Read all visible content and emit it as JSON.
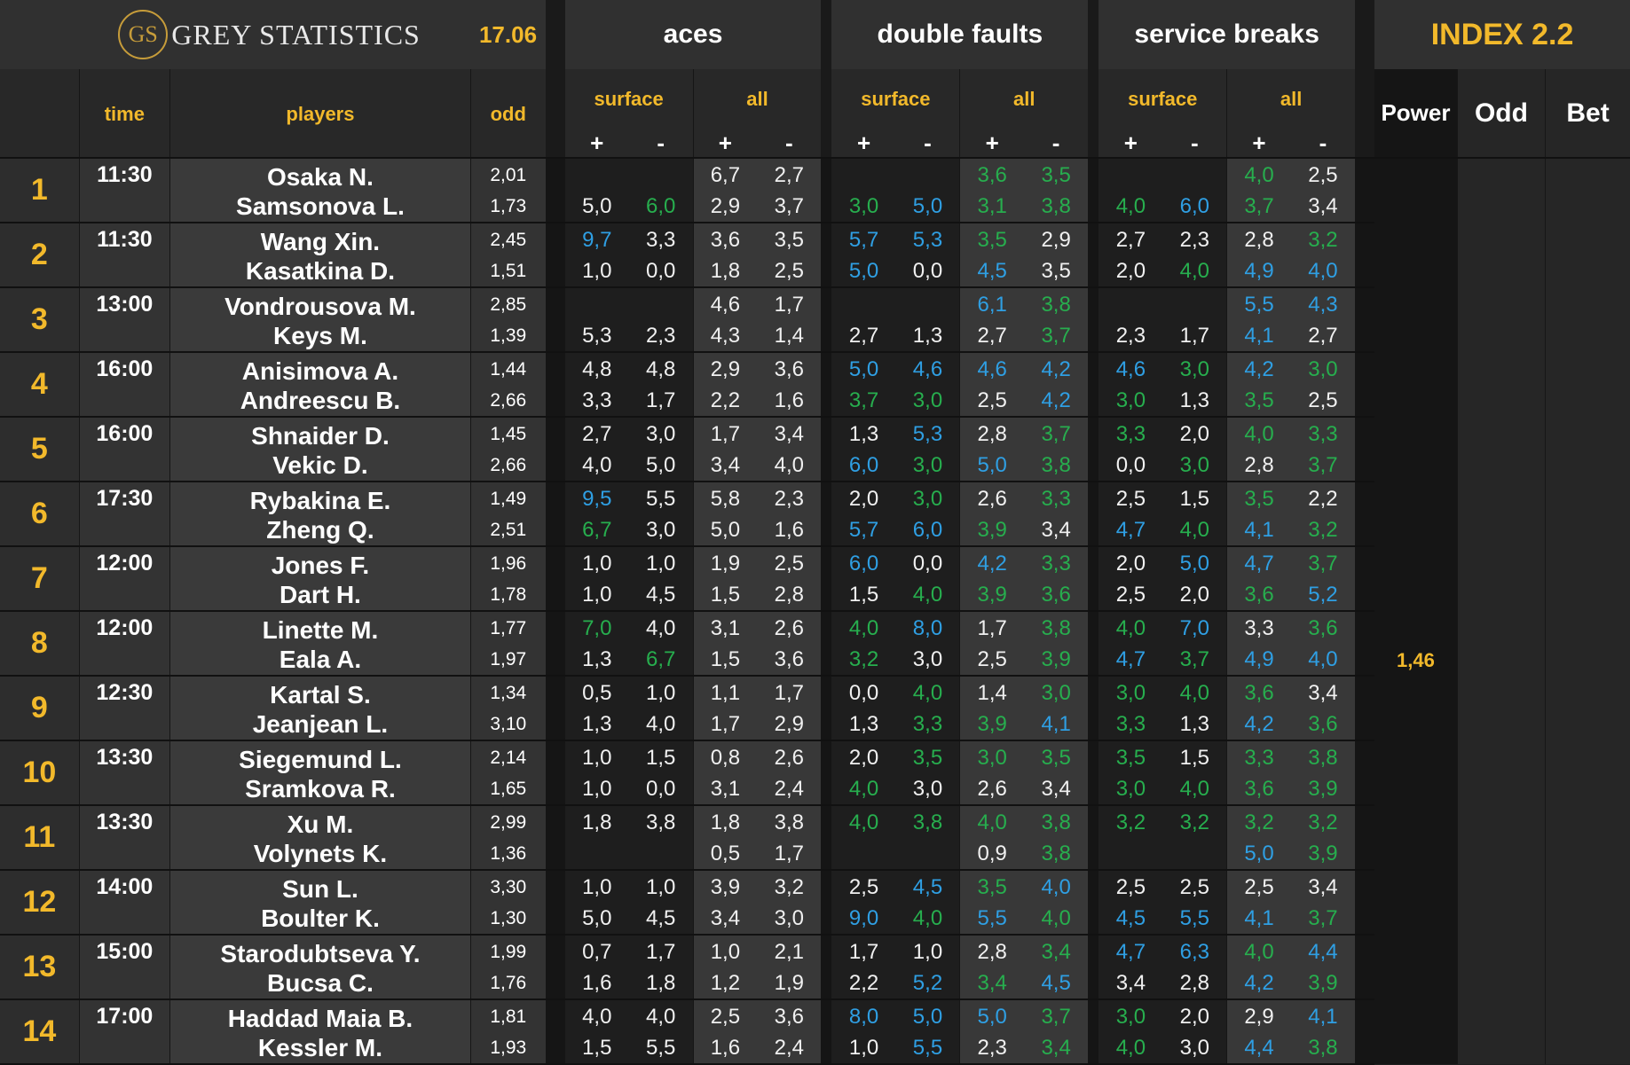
{
  "header": {
    "logo_mark": "GS",
    "brand": "GREY STATISTICS",
    "date": "17.06",
    "groups": [
      "aces",
      "double faults",
      "service breaks"
    ],
    "index_title": "INDEX 2.2",
    "col_time": "time",
    "col_players": "players",
    "col_odd": "odd",
    "sub_surface": "surface",
    "sub_all": "all",
    "plus": "+",
    "minus": "-",
    "power": "Power",
    "odd_label": "Odd",
    "bet": "Bet"
  },
  "colors": {
    "green": "#27ae4e",
    "blue": "#2f9fe3",
    "accent": "#f2b92b"
  },
  "matches": [
    {
      "n": "1",
      "time": "11:30",
      "rows": [
        {
          "player": "Osaka N.",
          "odd": "2,01",
          "vals": [
            [
              "",
              ""
            ],
            [
              "6,7",
              "2,7"
            ],
            [
              "",
              ""
            ],
            [
              "3,6 g",
              "3,5 g"
            ],
            [
              "",
              ""
            ],
            [
              "4,0 g",
              "2,5"
            ]
          ]
        },
        {
          "player": "Samsonova L.",
          "odd": "1,73",
          "vals": [
            [
              "5,0",
              "6,0 g"
            ],
            [
              "2,9",
              "3,7"
            ],
            [
              "3,0 g",
              "5,0 b"
            ],
            [
              "3,1 g",
              "3,8 g"
            ],
            [
              "4,0 g",
              "6,0 b"
            ],
            [
              "3,7 g",
              "3,4"
            ]
          ]
        }
      ],
      "power": ""
    },
    {
      "n": "2",
      "time": "11:30",
      "rows": [
        {
          "player": "Wang Xin.",
          "odd": "2,45",
          "vals": [
            [
              "9,7 b",
              "3,3"
            ],
            [
              "3,6",
              "3,5"
            ],
            [
              "5,7 b",
              "5,3 b"
            ],
            [
              "3,5 g",
              "2,9"
            ],
            [
              "2,7",
              "2,3"
            ],
            [
              "2,8",
              "3,2 g"
            ]
          ]
        },
        {
          "player": "Kasatkina D.",
          "odd": "1,51",
          "vals": [
            [
              "1,0",
              "0,0"
            ],
            [
              "1,8",
              "2,5"
            ],
            [
              "5,0 b",
              "0,0"
            ],
            [
              "4,5 b",
              "3,5"
            ],
            [
              "2,0",
              "4,0 g"
            ],
            [
              "4,9 b",
              "4,0 b"
            ]
          ]
        }
      ],
      "power": ""
    },
    {
      "n": "3",
      "time": "13:00",
      "rows": [
        {
          "player": "Vondrousova M.",
          "odd": "2,85",
          "vals": [
            [
              "",
              ""
            ],
            [
              "4,6",
              "1,7"
            ],
            [
              "",
              ""
            ],
            [
              "6,1 b",
              "3,8 g"
            ],
            [
              "",
              ""
            ],
            [
              "5,5 b",
              "4,3 b"
            ]
          ]
        },
        {
          "player": "Keys M.",
          "odd": "1,39",
          "vals": [
            [
              "5,3",
              "2,3"
            ],
            [
              "4,3",
              "1,4"
            ],
            [
              "2,7",
              "1,3"
            ],
            [
              "2,7",
              "3,7 g"
            ],
            [
              "2,3",
              "1,7"
            ],
            [
              "4,1 b",
              "2,7"
            ]
          ]
        }
      ],
      "power": ""
    },
    {
      "n": "4",
      "time": "16:00",
      "rows": [
        {
          "player": "Anisimova A.",
          "odd": "1,44",
          "vals": [
            [
              "4,8",
              "4,8"
            ],
            [
              "2,9",
              "3,6"
            ],
            [
              "5,0 b",
              "4,6 b"
            ],
            [
              "4,6 b",
              "4,2 b"
            ],
            [
              "4,6 b",
              "3,0 g"
            ],
            [
              "4,2 b",
              "3,0 g"
            ]
          ]
        },
        {
          "player": "Andreescu B.",
          "odd": "2,66",
          "vals": [
            [
              "3,3",
              "1,7"
            ],
            [
              "2,2",
              "1,6"
            ],
            [
              "3,7 g",
              "3,0 g"
            ],
            [
              "2,5",
              "4,2 b"
            ],
            [
              "3,0 g",
              "1,3"
            ],
            [
              "3,5 g",
              "2,5"
            ]
          ]
        }
      ],
      "power": ""
    },
    {
      "n": "5",
      "time": "16:00",
      "rows": [
        {
          "player": "Shnaider D.",
          "odd": "1,45",
          "vals": [
            [
              "2,7",
              "3,0"
            ],
            [
              "1,7",
              "3,4"
            ],
            [
              "1,3",
              "5,3 b"
            ],
            [
              "2,8",
              "3,7 g"
            ],
            [
              "3,3 g",
              "2,0"
            ],
            [
              "4,0 g",
              "3,3 g"
            ]
          ]
        },
        {
          "player": "Vekic D.",
          "odd": "2,66",
          "vals": [
            [
              "4,0",
              "5,0"
            ],
            [
              "3,4",
              "4,0"
            ],
            [
              "6,0 b",
              "3,0 g"
            ],
            [
              "5,0 b",
              "3,8 g"
            ],
            [
              "0,0",
              "3,0 g"
            ],
            [
              "2,8",
              "3,7 g"
            ]
          ]
        }
      ],
      "power": ""
    },
    {
      "n": "6",
      "time": "17:30",
      "rows": [
        {
          "player": "Rybakina E.",
          "odd": "1,49",
          "vals": [
            [
              "9,5 b",
              "5,5"
            ],
            [
              "5,8",
              "2,3"
            ],
            [
              "2,0",
              "3,0 g"
            ],
            [
              "2,6",
              "3,3 g"
            ],
            [
              "2,5",
              "1,5"
            ],
            [
              "3,5 g",
              "2,2"
            ]
          ]
        },
        {
          "player": "Zheng Q.",
          "odd": "2,51",
          "vals": [
            [
              "6,7 g",
              "3,0"
            ],
            [
              "5,0",
              "1,6"
            ],
            [
              "5,7 b",
              "6,0 b"
            ],
            [
              "3,9 g",
              "3,4"
            ],
            [
              "4,7 b",
              "4,0 g"
            ],
            [
              "4,1 b",
              "3,2 g"
            ]
          ]
        }
      ],
      "power": ""
    },
    {
      "n": "7",
      "time": "12:00",
      "rows": [
        {
          "player": "Jones F.",
          "odd": "1,96",
          "vals": [
            [
              "1,0",
              "1,0"
            ],
            [
              "1,9",
              "2,5"
            ],
            [
              "6,0 b",
              "0,0"
            ],
            [
              "4,2 b",
              "3,3 g"
            ],
            [
              "2,0",
              "5,0 b"
            ],
            [
              "4,7 b",
              "3,7 g"
            ]
          ]
        },
        {
          "player": "Dart H.",
          "odd": "1,78",
          "vals": [
            [
              "1,0",
              "4,5"
            ],
            [
              "1,5",
              "2,8"
            ],
            [
              "1,5",
              "4,0 g"
            ],
            [
              "3,9 g",
              "3,6 g"
            ],
            [
              "2,5",
              "2,0"
            ],
            [
              "3,6 g",
              "5,2 b"
            ]
          ]
        }
      ],
      "power": ""
    },
    {
      "n": "8",
      "time": "12:00",
      "rows": [
        {
          "player": "Linette M.",
          "odd": "1,77",
          "vals": [
            [
              "7,0 g",
              "4,0"
            ],
            [
              "3,1",
              "2,6"
            ],
            [
              "4,0 g",
              "8,0 b"
            ],
            [
              "1,7",
              "3,8 g"
            ],
            [
              "4,0 g",
              "7,0 b"
            ],
            [
              "3,3",
              "3,6 g"
            ]
          ]
        },
        {
          "player": "Eala A.",
          "odd": "1,97",
          "vals": [
            [
              "1,3",
              "6,7 g"
            ],
            [
              "1,5",
              "3,6"
            ],
            [
              "3,2 g",
              "3,0"
            ],
            [
              "2,5",
              "3,9 g"
            ],
            [
              "4,7 b",
              "3,7 g"
            ],
            [
              "4,9 b",
              "4,0 b"
            ]
          ]
        }
      ],
      "power": "1,46"
    },
    {
      "n": "9",
      "time": "12:30",
      "rows": [
        {
          "player": "Kartal S.",
          "odd": "1,34",
          "vals": [
            [
              "0,5",
              "1,0"
            ],
            [
              "1,1",
              "1,7"
            ],
            [
              "0,0",
              "4,0 g"
            ],
            [
              "1,4",
              "3,0 g"
            ],
            [
              "3,0 g",
              "4,0 g"
            ],
            [
              "3,6 g",
              "3,4"
            ]
          ]
        },
        {
          "player": "Jeanjean L.",
          "odd": "3,10",
          "vals": [
            [
              "1,3",
              "4,0"
            ],
            [
              "1,7",
              "2,9"
            ],
            [
              "1,3",
              "3,3 g"
            ],
            [
              "3,9 g",
              "4,1 b"
            ],
            [
              "3,3 g",
              "1,3"
            ],
            [
              "4,2 b",
              "3,6 g"
            ]
          ]
        }
      ],
      "power": ""
    },
    {
      "n": "10",
      "time": "13:30",
      "rows": [
        {
          "player": "Siegemund L.",
          "odd": "2,14",
          "vals": [
            [
              "1,0",
              "1,5"
            ],
            [
              "0,8",
              "2,6"
            ],
            [
              "2,0",
              "3,5 g"
            ],
            [
              "3,0 g",
              "3,5 g"
            ],
            [
              "3,5 g",
              "1,5"
            ],
            [
              "3,3 g",
              "3,8 g"
            ]
          ]
        },
        {
          "player": "Sramkova R.",
          "odd": "1,65",
          "vals": [
            [
              "1,0",
              "0,0"
            ],
            [
              "3,1",
              "2,4"
            ],
            [
              "4,0 g",
              "3,0"
            ],
            [
              "2,6",
              "3,4"
            ],
            [
              "3,0 g",
              "4,0 g"
            ],
            [
              "3,6 g",
              "3,9 g"
            ]
          ]
        }
      ],
      "power": ""
    },
    {
      "n": "11",
      "time": "13:30",
      "rows": [
        {
          "player": "Xu M.",
          "odd": "2,99",
          "vals": [
            [
              "1,8",
              "3,8"
            ],
            [
              "1,8",
              "3,8"
            ],
            [
              "4,0 g",
              "3,8 g"
            ],
            [
              "4,0 g",
              "3,8 g"
            ],
            [
              "3,2 g",
              "3,2 g"
            ],
            [
              "3,2 g",
              "3,2 g"
            ]
          ]
        },
        {
          "player": "Volynets K.",
          "odd": "1,36",
          "vals": [
            [
              "",
              ""
            ],
            [
              "0,5",
              "1,7"
            ],
            [
              "",
              ""
            ],
            [
              "0,9",
              "3,8 g"
            ],
            [
              "",
              ""
            ],
            [
              "5,0 b",
              "3,9 g"
            ]
          ]
        }
      ],
      "power": ""
    },
    {
      "n": "12",
      "time": "14:00",
      "rows": [
        {
          "player": "Sun L.",
          "odd": "3,30",
          "vals": [
            [
              "1,0",
              "1,0"
            ],
            [
              "3,9",
              "3,2"
            ],
            [
              "2,5",
              "4,5 b"
            ],
            [
              "3,5 g",
              "4,0 b"
            ],
            [
              "2,5",
              "2,5"
            ],
            [
              "2,5",
              "3,4"
            ]
          ]
        },
        {
          "player": "Boulter K.",
          "odd": "1,30",
          "vals": [
            [
              "5,0",
              "4,5"
            ],
            [
              "3,4",
              "3,0"
            ],
            [
              "9,0 b",
              "4,0 g"
            ],
            [
              "5,5 b",
              "4,0 g"
            ],
            [
              "4,5 b",
              "5,5 b"
            ],
            [
              "4,1 b",
              "3,7 g"
            ]
          ]
        }
      ],
      "power": ""
    },
    {
      "n": "13",
      "time": "15:00",
      "rows": [
        {
          "player": "Starodubtseva Y.",
          "odd": "1,99",
          "vals": [
            [
              "0,7",
              "1,7"
            ],
            [
              "1,0",
              "2,1"
            ],
            [
              "1,7",
              "1,0"
            ],
            [
              "2,8",
              "3,4 g"
            ],
            [
              "4,7 b",
              "6,3 b"
            ],
            [
              "4,0 g",
              "4,4 b"
            ]
          ]
        },
        {
          "player": "Bucsa C.",
          "odd": "1,76",
          "vals": [
            [
              "1,6",
              "1,8"
            ],
            [
              "1,2",
              "1,9"
            ],
            [
              "2,2",
              "5,2 b"
            ],
            [
              "3,4 g",
              "4,5 b"
            ],
            [
              "3,4",
              "2,8"
            ],
            [
              "4,2 b",
              "3,9 g"
            ]
          ]
        }
      ],
      "power": ""
    },
    {
      "n": "14",
      "time": "17:00",
      "rows": [
        {
          "player": "Haddad Maia B.",
          "odd": "1,81",
          "vals": [
            [
              "4,0",
              "4,0"
            ],
            [
              "2,5",
              "3,6"
            ],
            [
              "8,0 b",
              "5,0 b"
            ],
            [
              "5,0 b",
              "3,7 g"
            ],
            [
              "3,0 g",
              "2,0"
            ],
            [
              "2,9",
              "4,1 b"
            ]
          ]
        },
        {
          "player": "Kessler M.",
          "odd": "1,93",
          "vals": [
            [
              "1,5",
              "5,5"
            ],
            [
              "1,6",
              "2,4"
            ],
            [
              "1,0",
              "5,5 b"
            ],
            [
              "2,3",
              "3,4 g"
            ],
            [
              "4,0 g",
              "3,0"
            ],
            [
              "4,4 b",
              "3,8 g"
            ]
          ]
        }
      ],
      "power": ""
    }
  ]
}
